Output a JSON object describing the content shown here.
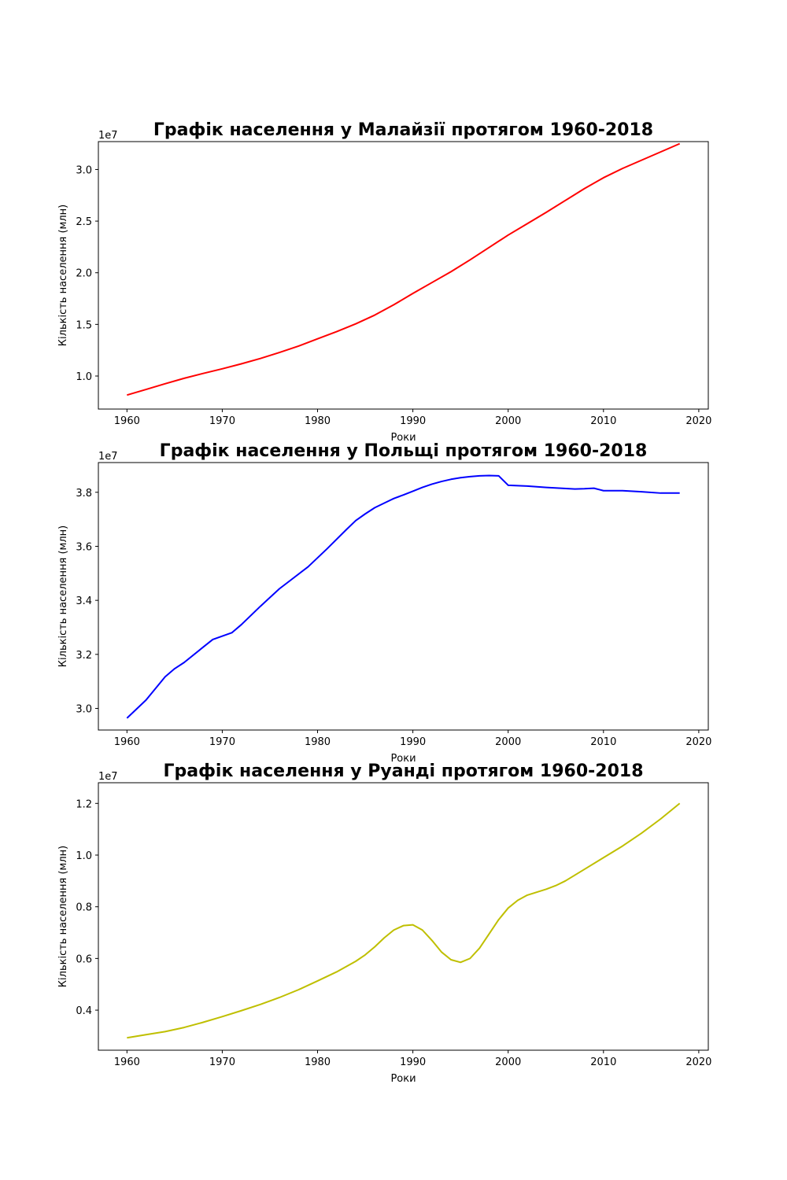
{
  "chart_data": [
    {
      "type": "line",
      "title": "Графік населення у Малайзії протягом 1960-2018",
      "xlabel": "Роки",
      "ylabel": "Кількість населення (млн)",
      "y_offset_label": "1e7",
      "color": "#ff0000",
      "xlim": [
        1957,
        2021
      ],
      "ylim": [
        0.68,
        3.27
      ],
      "xticks": [
        1960,
        1970,
        1980,
        1990,
        2000,
        2010,
        2020
      ],
      "yticks": [
        1.0,
        1.5,
        2.0,
        2.5,
        3.0
      ],
      "ytick_labels": [
        "1.0",
        "1.5",
        "2.0",
        "2.5",
        "3.0"
      ],
      "series": [
        {
          "x": [
            1960,
            1962,
            1964,
            1966,
            1968,
            1970,
            1972,
            1974,
            1976,
            1978,
            1980,
            1982,
            1984,
            1986,
            1988,
            1990,
            1992,
            1994,
            1996,
            1998,
            2000,
            2002,
            2004,
            2006,
            2008,
            2010,
            2012,
            2014,
            2016,
            2018
          ],
          "values": [
            0.816,
            0.87,
            0.925,
            0.978,
            1.025,
            1.07,
            1.118,
            1.17,
            1.228,
            1.29,
            1.36,
            1.43,
            1.505,
            1.59,
            1.69,
            1.8,
            1.905,
            2.01,
            2.125,
            2.245,
            2.365,
            2.475,
            2.585,
            2.7,
            2.815,
            2.92,
            3.01,
            3.09,
            3.17,
            3.25
          ]
        }
      ]
    },
    {
      "type": "line",
      "title": "Графік населення у Польщі протягом 1960-2018",
      "xlabel": "Роки",
      "ylabel": "Кількість населення (млн)",
      "y_offset_label": "1e7",
      "color": "#0000ff",
      "xlim": [
        1957,
        2021
      ],
      "ylim": [
        2.92,
        3.91
      ],
      "xticks": [
        1960,
        1970,
        1980,
        1990,
        2000,
        2010,
        2020
      ],
      "yticks": [
        3.0,
        3.2,
        3.4,
        3.6,
        3.8
      ],
      "ytick_labels": [
        "3.0",
        "3.2",
        "3.4",
        "3.6",
        "3.8"
      ],
      "series": [
        {
          "x": [
            1960,
            1962,
            1964,
            1965,
            1966,
            1968,
            1969,
            1971,
            1972,
            1974,
            1976,
            1977,
            1979,
            1981,
            1983,
            1984,
            1985,
            1986,
            1987,
            1988,
            1989,
            1990,
            1991,
            1992,
            1993,
            1994,
            1995,
            1996,
            1997,
            1998,
            1999,
            2000,
            2002,
            2004,
            2007,
            2008,
            2009,
            2010,
            2012,
            2014,
            2016,
            2018
          ],
          "values": [
            2.964,
            3.031,
            3.117,
            3.147,
            3.17,
            3.227,
            3.255,
            3.28,
            3.31,
            3.378,
            3.443,
            3.47,
            3.524,
            3.591,
            3.661,
            3.695,
            3.72,
            3.743,
            3.76,
            3.777,
            3.79,
            3.804,
            3.818,
            3.83,
            3.84,
            3.848,
            3.854,
            3.858,
            3.861,
            3.862,
            3.861,
            3.826,
            3.823,
            3.818,
            3.812,
            3.813,
            3.815,
            3.806,
            3.806,
            3.802,
            3.797,
            3.797
          ]
        }
      ]
    },
    {
      "type": "line",
      "title": "Графік населення у Руанді протягом 1960-2018",
      "xlabel": "Роки",
      "ylabel": "Кількість населення (млн)",
      "y_offset_label": "1e7",
      "color": "#bfbf00",
      "xlim": [
        1957,
        2021
      ],
      "ylim": [
        0.245,
        1.28
      ],
      "xticks": [
        1960,
        1970,
        1980,
        1990,
        2000,
        2010,
        2020
      ],
      "yticks": [
        0.4,
        0.6,
        0.8,
        1.0,
        1.2
      ],
      "ytick_labels": [
        "0.4",
        "0.6",
        "0.8",
        "1.0",
        "1.2"
      ],
      "series": [
        {
          "x": [
            1960,
            1962,
            1964,
            1966,
            1968,
            1970,
            1972,
            1974,
            1976,
            1978,
            1980,
            1982,
            1984,
            1985,
            1986,
            1987,
            1988,
            1989,
            1990,
            1991,
            1992,
            1993,
            1994,
            1995,
            1996,
            1997,
            1998,
            1999,
            2000,
            2001,
            2002,
            2004,
            2005,
            2006,
            2008,
            2010,
            2012,
            2014,
            2016,
            2018
          ],
          "values": [
            0.293,
            0.305,
            0.317,
            0.333,
            0.353,
            0.375,
            0.398,
            0.422,
            0.449,
            0.479,
            0.513,
            0.548,
            0.589,
            0.614,
            0.645,
            0.68,
            0.71,
            0.727,
            0.73,
            0.71,
            0.67,
            0.625,
            0.595,
            0.585,
            0.6,
            0.64,
            0.695,
            0.75,
            0.795,
            0.825,
            0.845,
            0.868,
            0.882,
            0.9,
            0.945,
            0.99,
            1.035,
            1.085,
            1.14,
            1.2
          ]
        }
      ]
    }
  ]
}
